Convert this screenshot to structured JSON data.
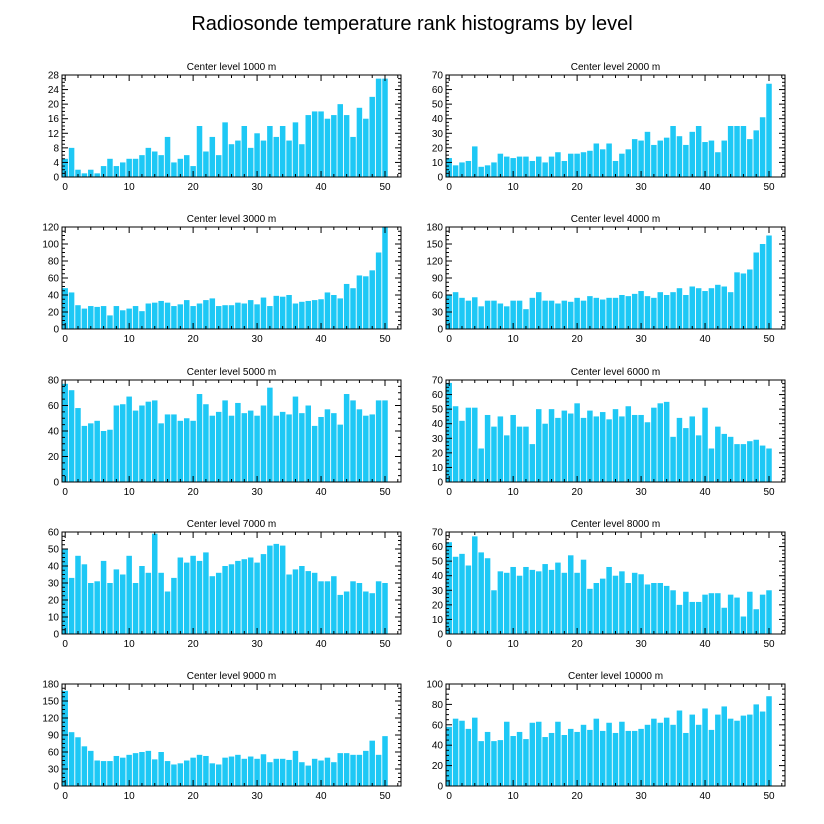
{
  "title": "Radiosonde temperature rank histograms by level",
  "bar_color": "#1ec8f5",
  "axis_color": "#000000",
  "chart_data": [
    {
      "type": "bar",
      "title": "Center level 1000 m",
      "xlim": [
        -0.5,
        52.5
      ],
      "ylim": [
        0,
        28
      ],
      "yticks": [
        0,
        4,
        8,
        12,
        16,
        20,
        24,
        28
      ],
      "xticks": [
        0,
        10,
        20,
        30,
        40,
        50
      ],
      "values": [
        5,
        8,
        2,
        1,
        2,
        1,
        3,
        5,
        3,
        4,
        5,
        5,
        6,
        8,
        7,
        6,
        11,
        4,
        5,
        6,
        3,
        14,
        7,
        11,
        6,
        15,
        9,
        10,
        14,
        8,
        12,
        10,
        14,
        11,
        14,
        10,
        15,
        9,
        17,
        18,
        18,
        16,
        17,
        20,
        17,
        11,
        19,
        16,
        22,
        27,
        27
      ]
    },
    {
      "type": "bar",
      "title": "Center level 2000 m",
      "xlim": [
        -0.5,
        52.5
      ],
      "ylim": [
        0,
        70
      ],
      "yticks": [
        0,
        10,
        20,
        30,
        40,
        50,
        60,
        70
      ],
      "xticks": [
        0,
        10,
        20,
        30,
        40,
        50
      ],
      "values": [
        13,
        8,
        10,
        11,
        21,
        7,
        8,
        10,
        16,
        14,
        13,
        14,
        14,
        11,
        14,
        10,
        14,
        17,
        11,
        16,
        16,
        17,
        18,
        23,
        19,
        23,
        11,
        16,
        19,
        26,
        25,
        31,
        22,
        25,
        27,
        35,
        28,
        22,
        31,
        35,
        24,
        25,
        17,
        25,
        35,
        35,
        35,
        26,
        32,
        41,
        64
      ]
    },
    {
      "type": "bar",
      "title": "Center level 3000 m",
      "xlim": [
        -0.5,
        52.5
      ],
      "ylim": [
        0,
        120
      ],
      "yticks": [
        0,
        20,
        40,
        60,
        80,
        100,
        120
      ],
      "xticks": [
        0,
        10,
        20,
        30,
        40,
        50
      ],
      "values": [
        48,
        43,
        28,
        24,
        27,
        26,
        27,
        16,
        27,
        22,
        24,
        27,
        21,
        30,
        31,
        33,
        31,
        27,
        29,
        34,
        27,
        30,
        34,
        36,
        27,
        28,
        28,
        31,
        30,
        34,
        29,
        37,
        27,
        39,
        38,
        40,
        30,
        32,
        33,
        34,
        35,
        43,
        40,
        36,
        53,
        48,
        63,
        62,
        69,
        90,
        120
      ]
    },
    {
      "type": "bar",
      "title": "Center level 4000 m",
      "xlim": [
        -0.5,
        52.5
      ],
      "ylim": [
        0,
        180
      ],
      "yticks": [
        0,
        30,
        60,
        90,
        120,
        150,
        180
      ],
      "xticks": [
        0,
        10,
        20,
        30,
        40,
        50
      ],
      "values": [
        60,
        65,
        55,
        50,
        56,
        40,
        50,
        50,
        45,
        40,
        50,
        50,
        35,
        55,
        65,
        50,
        50,
        45,
        50,
        48,
        55,
        50,
        58,
        55,
        52,
        55,
        55,
        60,
        58,
        62,
        67,
        58,
        55,
        65,
        60,
        65,
        72,
        60,
        75,
        72,
        67,
        72,
        78,
        75,
        65,
        100,
        98,
        105,
        135,
        150,
        165
      ]
    },
    {
      "type": "bar",
      "title": "Center level 5000 m",
      "xlim": [
        -0.5,
        52.5
      ],
      "ylim": [
        0,
        80
      ],
      "yticks": [
        0,
        20,
        40,
        60,
        80
      ],
      "xticks": [
        0,
        10,
        20,
        30,
        40,
        50
      ],
      "values": [
        77,
        72,
        58,
        44,
        46,
        48,
        40,
        41,
        60,
        61,
        67,
        56,
        60,
        63,
        64,
        46,
        53,
        53,
        48,
        50,
        48,
        69,
        61,
        52,
        55,
        64,
        52,
        62,
        54,
        56,
        52,
        60,
        74,
        52,
        55,
        53,
        67,
        54,
        60,
        44,
        51,
        57,
        54,
        45,
        69,
        64,
        57,
        52,
        53,
        64,
        64
      ]
    },
    {
      "type": "bar",
      "title": "Center level 6000 m",
      "xlim": [
        -0.5,
        52.5
      ],
      "ylim": [
        0,
        70
      ],
      "yticks": [
        0,
        10,
        20,
        30,
        40,
        50,
        60,
        70
      ],
      "xticks": [
        0,
        10,
        20,
        30,
        40,
        50
      ],
      "values": [
        68,
        52,
        42,
        51,
        51,
        23,
        46,
        38,
        45,
        32,
        46,
        38,
        38,
        26,
        50,
        40,
        50,
        44,
        49,
        47,
        54,
        44,
        49,
        45,
        48,
        43,
        50,
        45,
        52,
        46,
        46,
        41,
        51,
        54,
        55,
        31,
        44,
        37,
        45,
        32,
        51,
        23,
        38,
        33,
        31,
        26,
        26,
        28,
        29,
        25,
        23
      ]
    },
    {
      "type": "bar",
      "title": "Center level 7000 m",
      "xlim": [
        -0.5,
        52.5
      ],
      "ylim": [
        0,
        60
      ],
      "yticks": [
        0,
        10,
        20,
        30,
        40,
        50,
        60
      ],
      "xticks": [
        0,
        10,
        20,
        30,
        40,
        50
      ],
      "values": [
        50,
        33,
        46,
        41,
        30,
        31,
        43,
        30,
        38,
        35,
        46,
        30,
        40,
        36,
        59,
        36,
        25,
        33,
        45,
        42,
        46,
        43,
        48,
        34,
        36,
        40,
        41,
        43,
        44,
        45,
        42,
        47,
        52,
        53,
        52,
        35,
        38,
        40,
        37,
        36,
        31,
        31,
        34,
        23,
        25,
        31,
        30,
        25,
        24,
        31,
        30
      ]
    },
    {
      "type": "bar",
      "title": "Center level 8000 m",
      "xlim": [
        -0.5,
        52.5
      ],
      "ylim": [
        0,
        70
      ],
      "yticks": [
        0,
        10,
        20,
        30,
        40,
        50,
        60,
        70
      ],
      "xticks": [
        0,
        10,
        20,
        30,
        40,
        50
      ],
      "values": [
        63,
        53,
        55,
        47,
        67,
        56,
        52,
        30,
        43,
        42,
        46,
        40,
        46,
        44,
        43,
        48,
        44,
        49,
        42,
        54,
        42,
        51,
        31,
        35,
        38,
        46,
        40,
        43,
        35,
        42,
        41,
        34,
        35,
        35,
        33,
        30,
        20,
        29,
        22,
        22,
        27,
        28,
        28,
        18,
        27,
        25,
        12,
        29,
        17,
        27,
        30
      ]
    },
    {
      "type": "bar",
      "title": "Center level 9000 m",
      "xlim": [
        -0.5,
        52.5
      ],
      "ylim": [
        0,
        180
      ],
      "yticks": [
        0,
        30,
        60,
        90,
        120,
        150,
        180
      ],
      "xticks": [
        0,
        10,
        20,
        30,
        40,
        50
      ],
      "values": [
        168,
        95,
        86,
        70,
        62,
        45,
        44,
        44,
        53,
        50,
        55,
        58,
        60,
        62,
        47,
        60,
        44,
        38,
        40,
        45,
        50,
        55,
        53,
        40,
        38,
        50,
        52,
        55,
        48,
        52,
        48,
        56,
        42,
        48,
        48,
        46,
        62,
        42,
        36,
        48,
        45,
        50,
        42,
        58,
        58,
        55,
        55,
        62,
        80,
        55,
        88
      ]
    },
    {
      "type": "bar",
      "title": "Center level 10000 m",
      "xlim": [
        -0.5,
        52.5
      ],
      "ylim": [
        0,
        100
      ],
      "yticks": [
        0,
        20,
        40,
        60,
        80,
        100
      ],
      "xticks": [
        0,
        10,
        20,
        30,
        40,
        50
      ],
      "values": [
        58,
        66,
        64,
        56,
        67,
        44,
        53,
        44,
        45,
        63,
        49,
        53,
        46,
        62,
        63,
        48,
        52,
        63,
        50,
        56,
        53,
        60,
        55,
        66,
        54,
        62,
        52,
        63,
        54,
        54,
        56,
        60,
        66,
        62,
        67,
        60,
        74,
        52,
        70,
        60,
        76,
        55,
        70,
        78,
        66,
        64,
        69,
        70,
        80,
        73,
        88
      ]
    }
  ]
}
